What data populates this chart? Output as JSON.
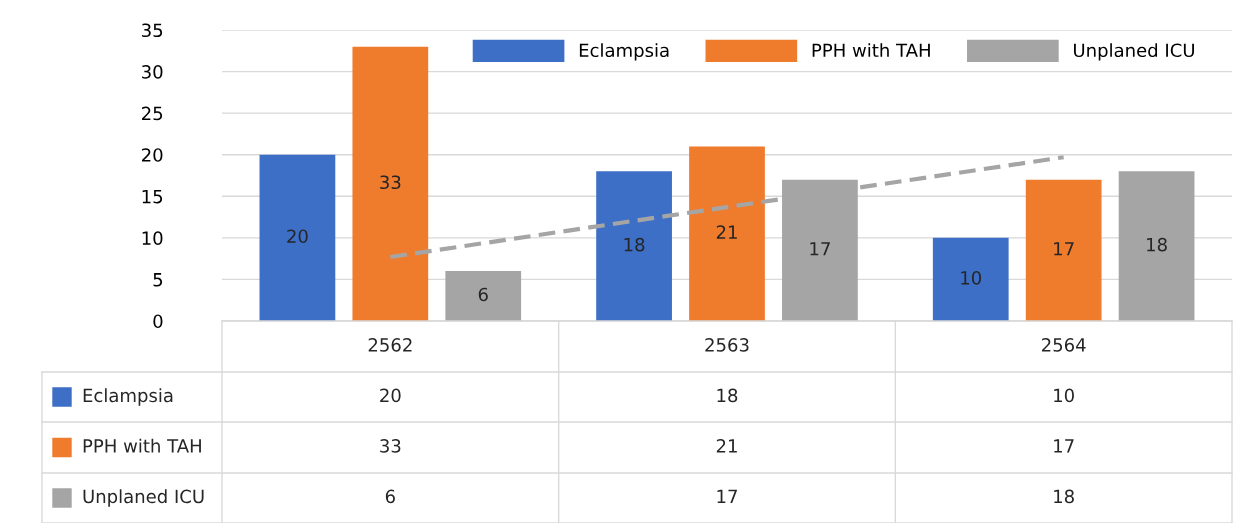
{
  "chart_data": {
    "type": "bar",
    "categories": [
      "2562",
      "2563",
      "2564"
    ],
    "series": [
      {
        "name": "Eclampsia",
        "color": "#3d6fc6",
        "values": [
          20,
          18,
          10
        ],
        "value_labels": [
          "20",
          "18",
          "10"
        ]
      },
      {
        "name": "PPH with TAH",
        "color": "#ef7b2d",
        "values": [
          33,
          21,
          17
        ],
        "value_labels": [
          "33",
          "21",
          "17"
        ]
      },
      {
        "name": "Unplaned ICU",
        "color": "#a5a5a5",
        "values": [
          6,
          17,
          18
        ],
        "value_labels": [
          "6",
          "17",
          "18"
        ]
      },
      {
        "type": "line",
        "color": "#a5a5a5",
        "values": [
          7.7,
          13.7,
          19.7
        ],
        "line_style": "dashed"
      }
    ],
    "ylim": [
      0,
      35
    ],
    "yticks": [
      0,
      5,
      10,
      15,
      20,
      25,
      30,
      35
    ],
    "grid": "y",
    "legend": "top right"
  }
}
